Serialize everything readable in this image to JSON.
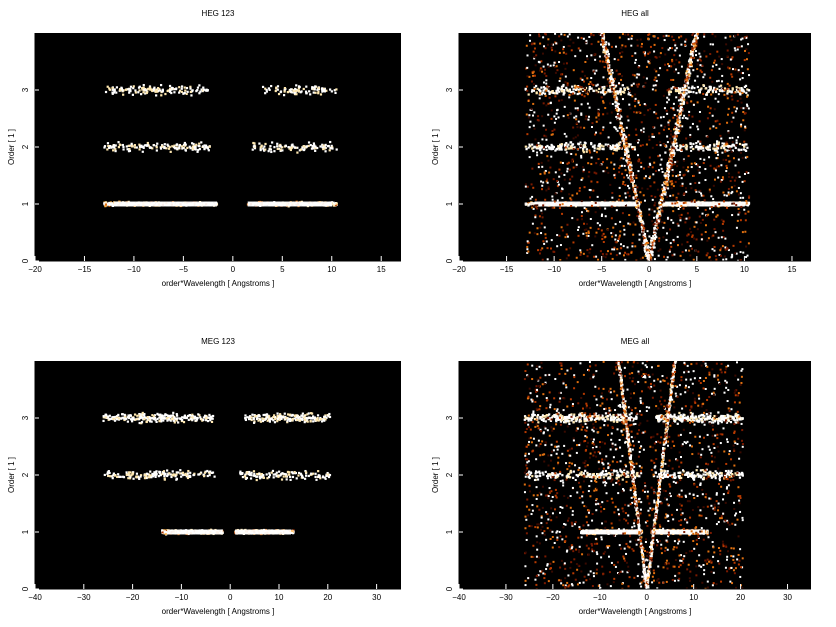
{
  "figure": {
    "background": "#ffffff",
    "plot_background": "#000000",
    "colormap": [
      "#3a0a00",
      "#7a1a00",
      "#b83a00",
      "#e07010",
      "#ffb040",
      "#ffe8b0",
      "#ffffff"
    ]
  },
  "chart_data": [
    {
      "id": "heg123",
      "type": "heatmap",
      "title": "HEG 123",
      "xlabel": "order*Wavelength [ Angstroms ]",
      "ylabel": "Order [ 1 ]",
      "xlim": [
        -20,
        17
      ],
      "ylim": [
        0,
        4
      ],
      "xticks": [
        -20,
        -15,
        -10,
        -5,
        0,
        5,
        10,
        15
      ],
      "yticks": [
        0,
        1,
        2,
        3
      ],
      "bands": [
        {
          "order": 1,
          "x_range": [
            -13,
            10.5
          ],
          "gap": [
            -1.6,
            1.5
          ],
          "intensity": "high"
        },
        {
          "order": 2,
          "x_range": [
            -13,
            10.5
          ],
          "gap": [
            -2.2,
            2.0
          ],
          "intensity": "low"
        },
        {
          "order": 3,
          "x_range": [
            -13,
            10.5
          ],
          "gap": [
            -2.5,
            3.0
          ],
          "intensity": "low"
        }
      ]
    },
    {
      "id": "hegall",
      "type": "heatmap",
      "title": "HEG all",
      "xlabel": "order*Wavelength [ Angstroms ]",
      "ylabel": "Order [ 1 ]",
      "xlim": [
        -20,
        17
      ],
      "ylim": [
        0,
        4
      ],
      "xticks": [
        -20,
        -15,
        -10,
        -5,
        0,
        5,
        10,
        15
      ],
      "yticks": [
        0,
        1,
        2,
        3
      ],
      "bands": [
        {
          "order": 1,
          "x_range": [
            -13,
            10.5
          ],
          "gap": [
            -1.0,
            1.0
          ],
          "intensity": "high"
        },
        {
          "order": 2,
          "x_range": [
            -13,
            10.5
          ],
          "gap": [
            -1.5,
            1.5
          ],
          "intensity": "low"
        },
        {
          "order": 3,
          "x_range": [
            -13,
            10.5
          ],
          "gap": [
            -2.0,
            2.0
          ],
          "intensity": "low"
        }
      ],
      "zero_order_streak": {
        "x": 0,
        "spread": 5.0
      }
    },
    {
      "id": "meg123",
      "type": "heatmap",
      "title": "MEG 123",
      "xlabel": "order*Wavelength [ Angstroms ]",
      "ylabel": "Order [ 1 ]",
      "xlim": [
        -40,
        35
      ],
      "ylim": [
        0,
        4
      ],
      "xticks": [
        -40,
        -30,
        -20,
        -10,
        0,
        10,
        20,
        30
      ],
      "yticks": [
        0,
        1,
        2,
        3
      ],
      "bands": [
        {
          "order": 1,
          "x_range": [
            -14,
            13
          ],
          "gap": [
            -1.5,
            1.0
          ],
          "intensity": "high"
        },
        {
          "order": 2,
          "x_range": [
            -26,
            20.5
          ],
          "gap": [
            -3.0,
            2.0
          ],
          "intensity": "low"
        },
        {
          "order": 3,
          "x_range": [
            -26,
            20.5
          ],
          "gap": [
            -3.5,
            3.0
          ],
          "intensity": "medium"
        }
      ]
    },
    {
      "id": "megall",
      "type": "heatmap",
      "title": "MEG all",
      "xlabel": "order*Wavelength [ Angstroms ]",
      "ylabel": "Order [ 1 ]",
      "xlim": [
        -40,
        35
      ],
      "ylim": [
        0,
        4
      ],
      "xticks": [
        -40,
        -30,
        -20,
        -10,
        0,
        10,
        20,
        30
      ],
      "yticks": [
        0,
        1,
        2,
        3
      ],
      "bands": [
        {
          "order": 1,
          "x_range": [
            -14,
            13
          ],
          "gap": [
            -1.0,
            1.0
          ],
          "intensity": "high"
        },
        {
          "order": 2,
          "x_range": [
            -26,
            20.5
          ],
          "gap": [
            -1.5,
            1.5
          ],
          "intensity": "low"
        },
        {
          "order": 3,
          "x_range": [
            -26,
            20.5
          ],
          "gap": [
            -2.0,
            2.0
          ],
          "intensity": "medium"
        }
      ],
      "zero_order_streak": {
        "x": 0,
        "spread": 6.0
      }
    }
  ]
}
